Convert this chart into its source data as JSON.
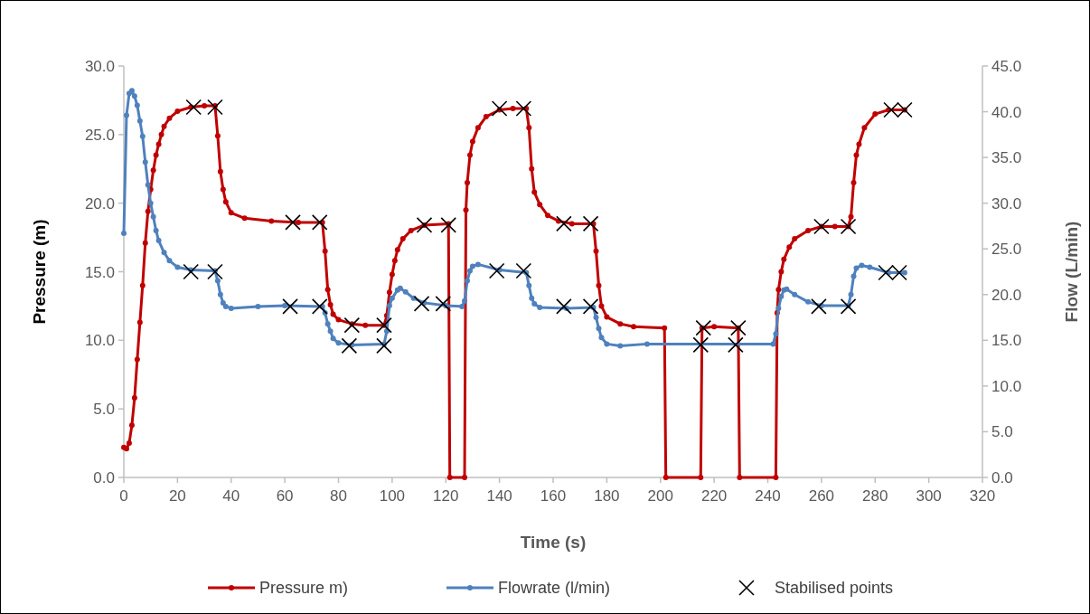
{
  "chart_data": {
    "type": "line",
    "xlabel": "Time  (s)",
    "ylabel": "Pressure (m)",
    "y2label": "Flow (L/min)",
    "xlim": [
      0,
      320
    ],
    "xticks": [
      0,
      20,
      40,
      60,
      80,
      100,
      120,
      140,
      160,
      180,
      200,
      220,
      240,
      260,
      280,
      300,
      320
    ],
    "ylim": [
      0,
      30
    ],
    "yticks": [
      {
        "value": 0,
        "label": "0.0"
      },
      {
        "value": 5,
        "label": "5.0"
      },
      {
        "value": 10,
        "label": "10.0"
      },
      {
        "value": 15,
        "label": "15.0"
      },
      {
        "value": 20,
        "label": "20.0"
      },
      {
        "value": 25,
        "label": "25.0"
      },
      {
        "value": 30,
        "label": "30.0"
      }
    ],
    "y2lim": [
      0,
      45
    ],
    "y2ticks": [
      {
        "value": 0,
        "label": "0.0"
      },
      {
        "value": 5,
        "label": "5.0"
      },
      {
        "value": 10,
        "label": "10.0"
      },
      {
        "value": 15,
        "label": "15.0"
      },
      {
        "value": 20,
        "label": "20.0"
      },
      {
        "value": 25,
        "label": "25.0"
      },
      {
        "value": 30,
        "label": "30.0"
      },
      {
        "value": 35,
        "label": "35.0"
      },
      {
        "value": 40,
        "label": "40.0"
      },
      {
        "value": 45,
        "label": "45.0"
      }
    ],
    "grid": false,
    "legend": "bottom",
    "marker": "circle",
    "line_style": "solid",
    "series": [
      {
        "name": "Pressure m)",
        "color": "#c00000",
        "x": [
          0,
          1,
          2,
          3,
          4,
          5,
          6,
          7,
          8,
          9,
          10,
          11,
          12,
          13,
          14,
          15,
          17,
          20,
          25,
          30,
          34,
          35,
          36,
          37,
          38,
          40,
          45,
          55,
          65,
          74,
          75,
          76,
          77,
          78,
          80,
          85,
          90,
          97,
          98,
          99,
          100,
          101,
          102,
          104,
          107,
          112,
          121,
          121.5,
          127,
          127.5,
          128,
          129,
          130,
          132,
          135,
          140,
          145,
          150,
          151,
          152,
          153,
          155,
          158,
          162,
          167,
          175,
          176,
          177,
          178,
          180,
          185,
          190,
          201.5,
          202,
          215,
          215.5,
          220,
          229,
          229.5,
          243,
          243.5,
          244,
          245,
          246,
          248,
          250,
          255,
          260,
          265,
          270,
          271,
          272,
          273,
          274,
          276,
          280,
          285,
          291
        ],
        "values": [
          2.2,
          2.1,
          2.5,
          3.8,
          5.8,
          8.6,
          11.3,
          14.0,
          17.1,
          19.4,
          21.0,
          22.4,
          23.5,
          24.3,
          25.0,
          25.6,
          26.2,
          26.7,
          27.0,
          27.1,
          27.1,
          24.9,
          22.3,
          21.0,
          20.1,
          19.3,
          18.9,
          18.7,
          18.6,
          18.6,
          16.5,
          13.7,
          12.6,
          11.9,
          11.5,
          11.2,
          11.1,
          11.1,
          11.8,
          13.5,
          14.8,
          15.8,
          16.6,
          17.4,
          18.0,
          18.4,
          18.5,
          0,
          0,
          19.5,
          21.5,
          23.5,
          24.5,
          25.5,
          26.3,
          26.8,
          26.9,
          26.9,
          25.5,
          22.5,
          20.8,
          19.9,
          19.1,
          18.7,
          18.5,
          18.5,
          16.5,
          14.0,
          12.5,
          11.7,
          11.2,
          11.0,
          10.9,
          0,
          0,
          10.9,
          11.0,
          10.9,
          0,
          0,
          12.0,
          13.7,
          15.0,
          15.9,
          16.8,
          17.4,
          18.0,
          18.3,
          18.3,
          18.3,
          19.0,
          21.5,
          23.5,
          24.3,
          25.5,
          26.5,
          26.8,
          26.8
        ]
      },
      {
        "name": "Flowrate (l/min)",
        "axis": "y2",
        "color": "#4f81bd",
        "x": [
          0,
          1,
          2,
          3,
          4,
          5,
          6,
          7,
          8,
          9,
          10,
          11,
          12,
          13,
          15,
          17,
          20,
          25,
          34,
          35,
          36,
          37,
          38,
          40,
          50,
          60,
          74,
          75,
          76,
          77,
          78,
          80,
          85,
          97,
          98,
          99,
          100,
          102,
          103,
          105,
          108,
          112,
          120,
          126,
          127,
          128,
          129,
          130,
          132,
          140,
          150,
          151,
          152,
          153,
          155,
          165,
          175,
          176,
          177,
          178,
          180,
          185,
          195,
          242,
          243,
          244,
          245,
          246,
          247,
          250,
          255,
          260,
          270,
          271,
          272,
          273,
          275,
          278,
          285,
          291
        ],
        "values": [
          26.7,
          39.6,
          42.0,
          42.3,
          41.7,
          40.7,
          39.0,
          37.3,
          34.5,
          32.0,
          30.0,
          28.5,
          27.0,
          25.9,
          24.6,
          23.7,
          23.0,
          22.7,
          22.6,
          21.5,
          20.0,
          19.1,
          18.7,
          18.5,
          18.7,
          18.8,
          18.7,
          18.0,
          16.8,
          16.0,
          15.2,
          14.7,
          14.5,
          14.6,
          16.0,
          18.8,
          19.6,
          20.5,
          20.7,
          20.3,
          19.6,
          19.1,
          18.8,
          18.7,
          19.3,
          21.5,
          22.6,
          23.1,
          23.3,
          22.7,
          22.4,
          21.0,
          19.6,
          19.0,
          18.6,
          18.5,
          18.6,
          17.5,
          16.3,
          15.3,
          14.6,
          14.4,
          14.6,
          14.6,
          15.7,
          18.5,
          19.8,
          20.5,
          20.6,
          20.0,
          19.2,
          18.8,
          18.8,
          20.0,
          22.0,
          22.9,
          23.2,
          23.0,
          22.4,
          22.4
        ]
      },
      {
        "name": "Stabilised points",
        "type": "scatter",
        "color": "#000000",
        "marker": "cross",
        "x": [
          26,
          34,
          63,
          73,
          85,
          97,
          112,
          121,
          140,
          149,
          164,
          174,
          216,
          229,
          260,
          270,
          286,
          291
        ],
        "values": [
          27.0,
          27.0,
          18.6,
          18.6,
          11.1,
          11.1,
          18.4,
          18.4,
          26.9,
          26.9,
          18.5,
          18.5,
          10.9,
          10.9,
          18.3,
          18.3,
          26.8,
          26.8
        ]
      },
      {
        "type": "scatter",
        "axis": "y2",
        "color": "#000000",
        "marker": "cross",
        "x": [
          25,
          34,
          62,
          73,
          84,
          97,
          111,
          119,
          139,
          149,
          164,
          174,
          215,
          228,
          259,
          270,
          284,
          289
        ],
        "values": [
          22.5,
          22.5,
          18.7,
          18.7,
          14.4,
          14.4,
          19.0,
          19.0,
          22.6,
          22.6,
          18.7,
          18.7,
          14.5,
          14.5,
          18.7,
          18.7,
          22.4,
          22.4
        ]
      }
    ]
  }
}
